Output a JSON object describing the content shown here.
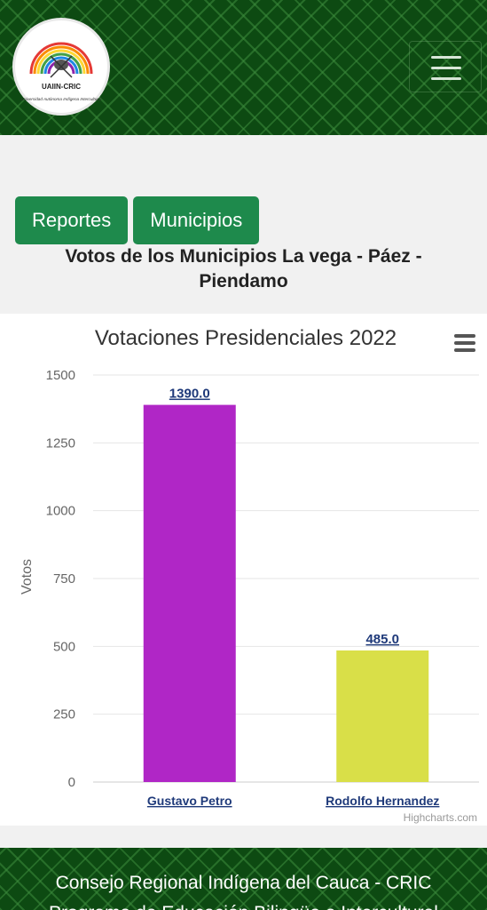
{
  "header": {
    "logo_text": "UAIIN-CRIC",
    "logo_subtitle": "Universidad Autónoma Indígena Intercultural",
    "menu_icon": "hamburger-icon"
  },
  "tabs": [
    {
      "label": "Reportes"
    },
    {
      "label": "Municipios"
    }
  ],
  "section_title": "Votos de los Municipios La vega - Páez - Piendamo",
  "chart_menu_icon": "hamburger-icon",
  "chart_data": {
    "type": "bar",
    "title": "Votaciones Presidenciales 2022",
    "ylabel": "Votos",
    "categories": [
      "Gustavo Petro",
      "Rodolfo Hernandez"
    ],
    "values": [
      1390.0,
      485.0
    ],
    "data_labels": [
      "1390.0",
      "485.0"
    ],
    "colors": [
      "#b026c6",
      "#d9df48"
    ],
    "ylim": [
      0,
      1500
    ],
    "yticks": [
      "0",
      "250",
      "500",
      "750",
      "1000",
      "1250",
      "1500"
    ],
    "grid": true,
    "credits": "Highcharts.com"
  },
  "footer": {
    "line1": "Consejo Regional Indígena del Cauca - CRIC",
    "line2": "Programa de Educación Bilingüe e Intercultural"
  }
}
